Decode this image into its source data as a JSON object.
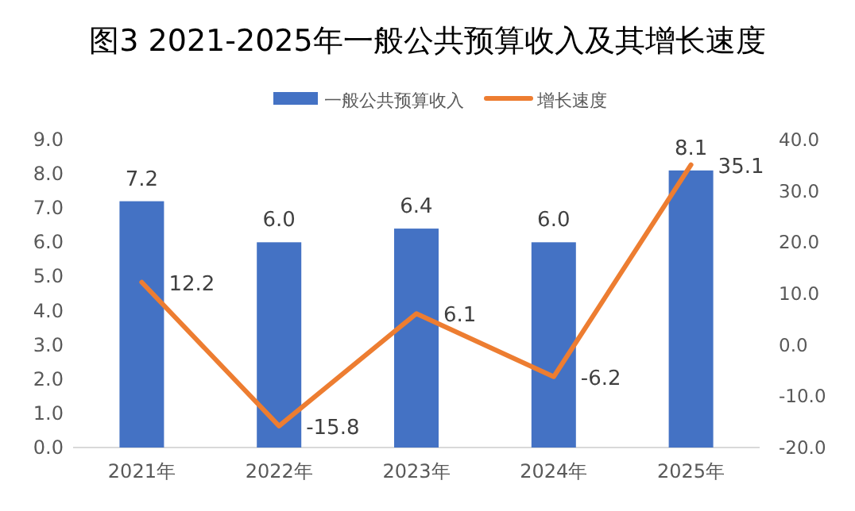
{
  "chart_data": {
    "type": "bar",
    "title": "图3  2021-2025年一般公共预算收入及其增长速度",
    "categories": [
      "2021年",
      "2022年",
      "2023年",
      "2024年",
      "2025年"
    ],
    "series": [
      {
        "name": "一般公共预算收入",
        "color": "#4472c4",
        "values": [
          7.2,
          6.0,
          6.4,
          6.0,
          8.1
        ],
        "value_labels": [
          "7.2",
          "6.0",
          "6.4",
          "6.0",
          "8.1"
        ]
      },
      {
        "name": "增长速度",
        "type": "line",
        "axis": "y2",
        "color": "#ed7d31",
        "values": [
          12.2,
          -15.8,
          6.1,
          -6.2,
          35.1
        ]
      }
    ],
    "ylim": [
      0,
      9
    ],
    "yticks": [
      {
        "value": 0,
        "label": "0.0"
      },
      {
        "value": 1,
        "label": "1.0"
      },
      {
        "value": 2,
        "label": "2.0"
      },
      {
        "value": 3,
        "label": "3.0"
      },
      {
        "value": 4,
        "label": "4.0"
      },
      {
        "value": 5,
        "label": "5.0"
      },
      {
        "value": 6,
        "label": "6.0"
      },
      {
        "value": 7,
        "label": "7.0"
      },
      {
        "value": 8,
        "label": "8.0"
      },
      {
        "value": 9,
        "label": "9.0"
      }
    ],
    "y2lim": [
      -20,
      40
    ],
    "y2ticks": [
      {
        "value": -20,
        "label": "-20.0"
      },
      {
        "value": -10,
        "label": "-10.0"
      },
      {
        "value": 0,
        "label": "0.0"
      },
      {
        "value": 10,
        "label": "10.0"
      },
      {
        "value": 20,
        "label": "20.0"
      },
      {
        "value": 30,
        "label": "30.0"
      },
      {
        "value": 40,
        "label": "40.0"
      }
    ],
    "data_labels": true,
    "legend": "top",
    "grid": false,
    "marker": "none",
    "line_style": "solid"
  }
}
